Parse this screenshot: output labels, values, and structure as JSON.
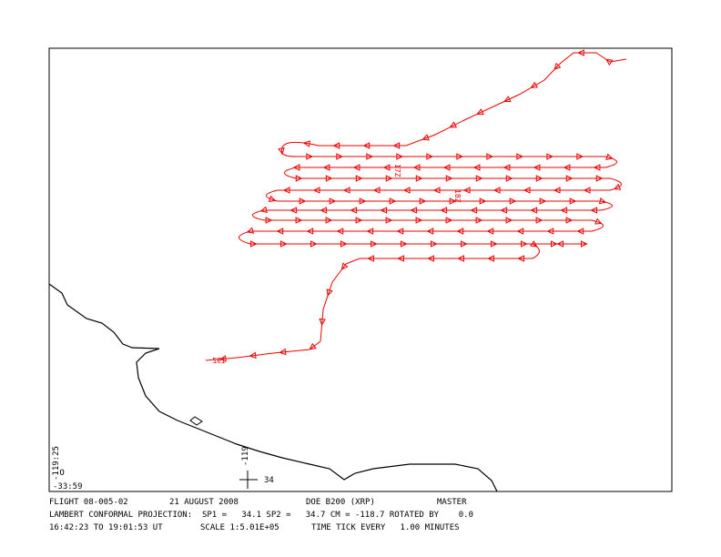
{
  "map": {
    "labels": {
      "time_17": "17Z",
      "time_18": "18Z",
      "time_19": "19Z"
    },
    "corner": {
      "lon": "-119:25",
      "lat": "-33:59"
    },
    "grid_mark": {
      "lon": "-119",
      "lat": "34"
    }
  },
  "footer": {
    "line1": [
      "FLIGHT 08-005-02",
      "21 AUGUST 2008",
      "DOE B200 (XRP)",
      "MASTER"
    ],
    "line2": "LAMBERT CONFORMAL PROJECTION:  SP1 =   34.1 SP2 =   34.7 CM = -118.7 ROTATED BY    0.0",
    "line3": [
      "16:42:23 TO 19:01:53 UT",
      "SCALE 1:5.01E+05",
      "TIME TICK EVERY   1.00 MINUTES"
    ]
  }
}
